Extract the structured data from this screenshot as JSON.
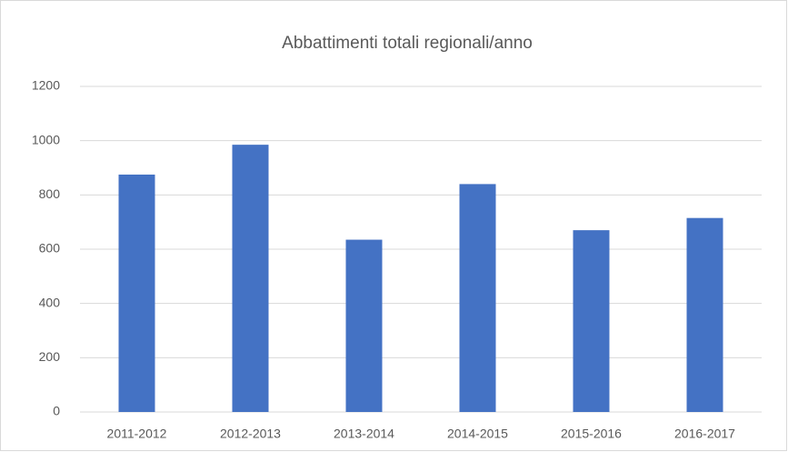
{
  "chart_data": {
    "type": "bar",
    "title": "Abbattimenti totali regionali/anno",
    "categories": [
      "2011-2012",
      "2012-2013",
      "2013-2014",
      "2014-2015",
      "2015-2016",
      "2016-2017"
    ],
    "values": [
      875,
      985,
      635,
      840,
      670,
      715
    ],
    "color": "#4472c4",
    "ylim": [
      0,
      1200
    ],
    "yticks": [
      0,
      200,
      400,
      600,
      800,
      1000,
      1200
    ],
    "grid": true
  }
}
